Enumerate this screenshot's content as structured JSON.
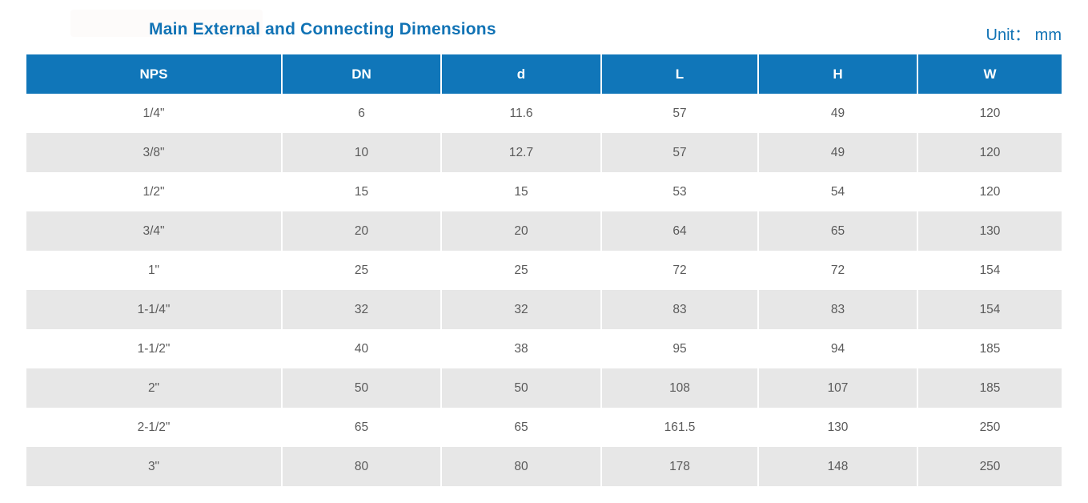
{
  "header": {
    "title": "Main External and Connecting Dimensions",
    "unit_label": "Unit：  mm"
  },
  "colors": {
    "accent_blue": "#1076b9",
    "title_blue": "#1173b5",
    "stripe_gray": "#e7e7e7",
    "cell_text": "#5a5a5a"
  },
  "table": {
    "columns": [
      "NPS",
      "DN",
      "d",
      "L",
      "H",
      "W"
    ],
    "rows": [
      [
        "1/4\"",
        "6",
        "11.6",
        "57",
        "49",
        "120"
      ],
      [
        "3/8\"",
        "10",
        "12.7",
        "57",
        "49",
        "120"
      ],
      [
        "1/2\"",
        "15",
        "15",
        "53",
        "54",
        "120"
      ],
      [
        "3/4\"",
        "20",
        "20",
        "64",
        "65",
        "130"
      ],
      [
        "1\"",
        "25",
        "25",
        "72",
        "72",
        "154"
      ],
      [
        "1-1/4\"",
        "32",
        "32",
        "83",
        "83",
        "154"
      ],
      [
        "1-1/2\"",
        "40",
        "38",
        "95",
        "94",
        "185"
      ],
      [
        "2\"",
        "50",
        "50",
        "108",
        "107",
        "185"
      ],
      [
        "2-1/2\"",
        "65",
        "65",
        "161.5",
        "130",
        "250"
      ],
      [
        "3\"",
        "80",
        "80",
        "178",
        "148",
        "250"
      ]
    ]
  }
}
